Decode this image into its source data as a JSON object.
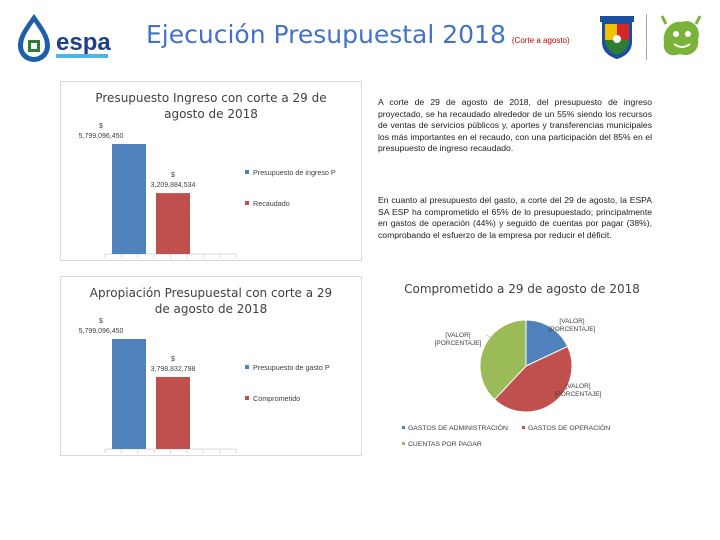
{
  "header": {
    "title": "Ejecución Presupuestal 2018",
    "subtitle": "(Corte a agosto)"
  },
  "logos": {
    "brand_text": "espa"
  },
  "text": {
    "paragraph1": "A corte de 29 de agosto de 2018, del presupuesto de ingreso proyectado, se ha recaudado alrededor de un 55% siendo los recursos de ventas de servicios públicos y, aportes y transferencias municipales los más importantes en el recaudo, con una participación del 85% en el presupuesto de ingreso recaudado.",
    "paragraph2": "En cuanto al presupuesto del gasto, a corte del 29 de agosto, la ESPA SA ESP ha comprometido el 65% de lo presupuestado; principalmente en gastos de operación (44%) y seguido de cuentas por pagar (38%), comprobando el esfuerzo de la empresa por reducir el déficit."
  },
  "colors": {
    "blue": "#4f81bd",
    "red": "#c0504d",
    "green": "#9bbb59",
    "title_blue": "#4472c4",
    "axis": "#d9d9d9"
  },
  "chart_data": [
    {
      "type": "bar",
      "title": "Presupuesto Ingreso con corte a 29 de agosto de 2018",
      "series": [
        {
          "name": "Presupuesto de ingreso P",
          "value": 5799096450,
          "label": "$ 5,799,096,450"
        },
        {
          "name": "Recaudado",
          "value": 3209884534,
          "label": "$ 3,209,884,534"
        }
      ],
      "ylim": [
        0,
        5799096450
      ],
      "legend_position": "right"
    },
    {
      "type": "bar",
      "title": "Apropiación Presupuestal con corte a 29 de agosto de 2018",
      "series": [
        {
          "name": "Presupuesto de gasto P",
          "value": 5799096450,
          "label": "$ 5,799,096,450"
        },
        {
          "name": "Comprometido",
          "value": 3798832798,
          "label": "$ 3,798,832,798"
        }
      ],
      "ylim": [
        0,
        5799096450
      ],
      "legend_position": "right"
    },
    {
      "type": "pie",
      "title": "Comprometido a 29 de agosto de 2018",
      "slices": [
        {
          "name": "GASTOS DE ADMINISTRACIÓN",
          "value": 18,
          "label_line1": "[VALOR]",
          "label_line2": "[PORCENTAJE]"
        },
        {
          "name": "GASTOS DE OPERACIÓN",
          "value": 44,
          "label_line1": "[VALOR]",
          "label_line2": "[PORCENTAJE]"
        },
        {
          "name": "CUENTAS POR PAGAR",
          "value": 38,
          "label_line1": "[VALOR]",
          "label_line2": "[PORCENTAJE]"
        }
      ],
      "legend_position": "bottom"
    }
  ]
}
